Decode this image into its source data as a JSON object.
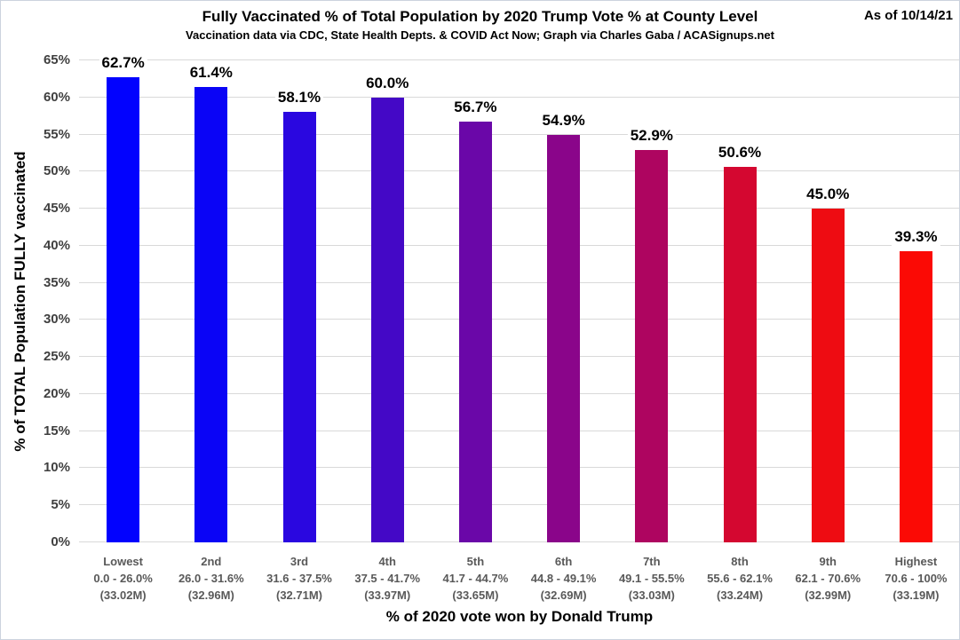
{
  "header": {
    "title": "Fully Vaccinated % of Total Population by 2020 Trump Vote % at County Level",
    "subtitle": "Vaccination data via CDC, State Health Depts. & COVID Act Now; Graph via Charles Gaba / ACASignups.net",
    "as_of": "As of 10/14/21"
  },
  "chart_data": {
    "type": "bar",
    "title": "Fully Vaccinated % of Total Population by 2020 Trump Vote % at County Level",
    "subtitle": "Vaccination data via CDC, State Health Depts. & COVID Act Now; Graph via Charles Gaba / ACASignups.net",
    "xlabel": "% of 2020 vote won by Donald Trump",
    "ylabel": "% of TOTAL Population FULLY vaccinated",
    "ylim": [
      0,
      65
    ],
    "ytick_step": 5,
    "yticks": [
      "0%",
      "5%",
      "10%",
      "15%",
      "20%",
      "25%",
      "30%",
      "35%",
      "40%",
      "45%",
      "50%",
      "55%",
      "60%",
      "65%"
    ],
    "grid": true,
    "legend": false,
    "categories": [
      {
        "rank": "Lowest",
        "range": "0.0 - 26.0%",
        "population": "(33.02M)"
      },
      {
        "rank": "2nd",
        "range": "26.0 - 31.6%",
        "population": "(32.96M)"
      },
      {
        "rank": "3rd",
        "range": "31.6 - 37.5%",
        "population": "(32.71M)"
      },
      {
        "rank": "4th",
        "range": "37.5 - 41.7%",
        "population": "(33.97M)"
      },
      {
        "rank": "5th",
        "range": "41.7 - 44.7%",
        "population": "(33.65M)"
      },
      {
        "rank": "6th",
        "range": "44.8 - 49.1%",
        "population": "(32.69M)"
      },
      {
        "rank": "7th",
        "range": "49.1 - 55.5%",
        "population": "(33.03M)"
      },
      {
        "rank": "8th",
        "range": "55.6 - 62.1%",
        "population": "(33.24M)"
      },
      {
        "rank": "9th",
        "range": "62.1 - 70.6%",
        "population": "(32.99M)"
      },
      {
        "rank": "Highest",
        "range": "70.6 - 100%",
        "population": "(33.19M)"
      }
    ],
    "values": [
      62.7,
      61.4,
      58.1,
      60.0,
      56.7,
      54.9,
      52.9,
      50.6,
      45.0,
      39.3
    ],
    "labels": [
      "62.7%",
      "61.4%",
      "58.1%",
      "60.0%",
      "56.7%",
      "54.9%",
      "52.9%",
      "50.6%",
      "45.0%",
      "39.3%"
    ],
    "bar_colors": [
      "#0202fe",
      "#0a04f6",
      "#2a07e0",
      "#4408c6",
      "#6a07a8",
      "#8a058a",
      "#ae0560",
      "#d40730",
      "#ee0c12",
      "#fb0a05"
    ]
  },
  "colors": {
    "grid": "#d9d9d9",
    "y_tick_label": "#404040",
    "category_label": "#595959",
    "title": "#000000",
    "border": "#ccd3de"
  }
}
